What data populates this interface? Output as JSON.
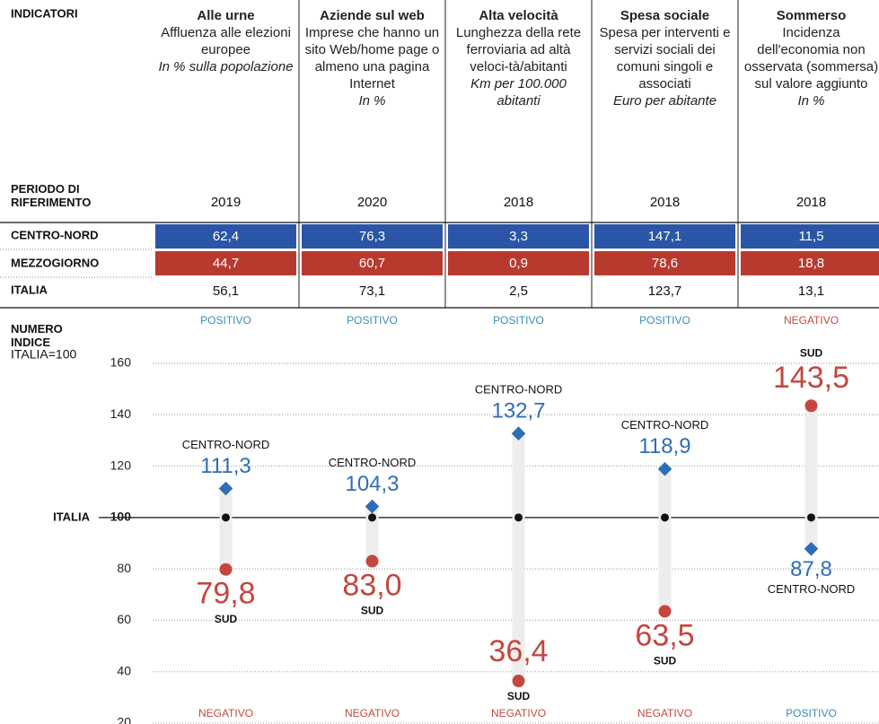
{
  "header": {
    "label": "INDICATORI"
  },
  "row_labels": {
    "period": "PERIODO DI RIFERIMENTO",
    "cn": "CENTRO-NORD",
    "mez": "MEZZOGIORNO",
    "italia": "ITALIA"
  },
  "columns": [
    {
      "name": "Alle urne",
      "description": "Affluenza alle elezioni europee",
      "unit": "In % sulla popolazione",
      "period": "2019",
      "centro_nord": "62,4",
      "mezzogiorno": "44,7",
      "italia": "56,1",
      "top_label": "POSITIVO",
      "bottom_label": "NEGATIVO",
      "index_cn": 111.3,
      "index_cn_label": "111,3",
      "index_sud": 79.8,
      "index_sud_label": "79,8"
    },
    {
      "name": "Aziende sul web",
      "description": "Imprese che hanno un sito Web/home page o almeno una pagina Internet",
      "unit": "In %",
      "period": "2020",
      "centro_nord": "76,3",
      "mezzogiorno": "60,7",
      "italia": "73,1",
      "top_label": "POSITIVO",
      "bottom_label": "NEGATIVO",
      "index_cn": 104.3,
      "index_cn_label": "104,3",
      "index_sud": 83.0,
      "index_sud_label": "83,0"
    },
    {
      "name": "Alta velocità",
      "description": "Lunghezza della rete ferroviaria ad altà veloci-tà/abitanti",
      "unit": "Km per 100.000 abitanti",
      "period": "2018",
      "centro_nord": "3,3",
      "mezzogiorno": "0,9",
      "italia": "2,5",
      "top_label": "POSITIVO",
      "bottom_label": "NEGATIVO",
      "index_cn": 132.7,
      "index_cn_label": "132,7",
      "index_sud": 36.4,
      "index_sud_label": "36,4"
    },
    {
      "name": "Spesa sociale",
      "description": "Spesa per interventi e servizi sociali dei comuni singoli e associati",
      "unit": "Euro per abitante",
      "period": "2018",
      "centro_nord": "147,1",
      "mezzogiorno": "78,6",
      "italia": "123,7",
      "top_label": "POSITIVO",
      "bottom_label": "NEGATIVO",
      "index_cn": 118.9,
      "index_cn_label": "118,9",
      "index_sud": 63.5,
      "index_sud_label": "63,5"
    },
    {
      "name": "Sommerso",
      "description": "Incidenza dell'economia non osservata (sommersa) sul valore aggiunto",
      "unit": "In %",
      "period": "2018",
      "centro_nord": "11,5",
      "mezzogiorno": "18,8",
      "italia": "13,1",
      "top_label": "NEGATIVO",
      "bottom_label": "POSITIVO",
      "index_cn": 87.8,
      "index_cn_label": "87,8",
      "index_sud": 143.5,
      "index_sud_label": "143,5"
    }
  ],
  "index": {
    "title": "NUMERO INDICE",
    "subtitle": "ITALIA=100",
    "reference_label": "ITALIA",
    "reference": 100,
    "cn_name": "CENTRO-NORD",
    "sud_name": "SUD",
    "ylim": [
      20,
      160
    ],
    "yticks": [
      20,
      40,
      60,
      80,
      100,
      120,
      140,
      160
    ]
  }
}
